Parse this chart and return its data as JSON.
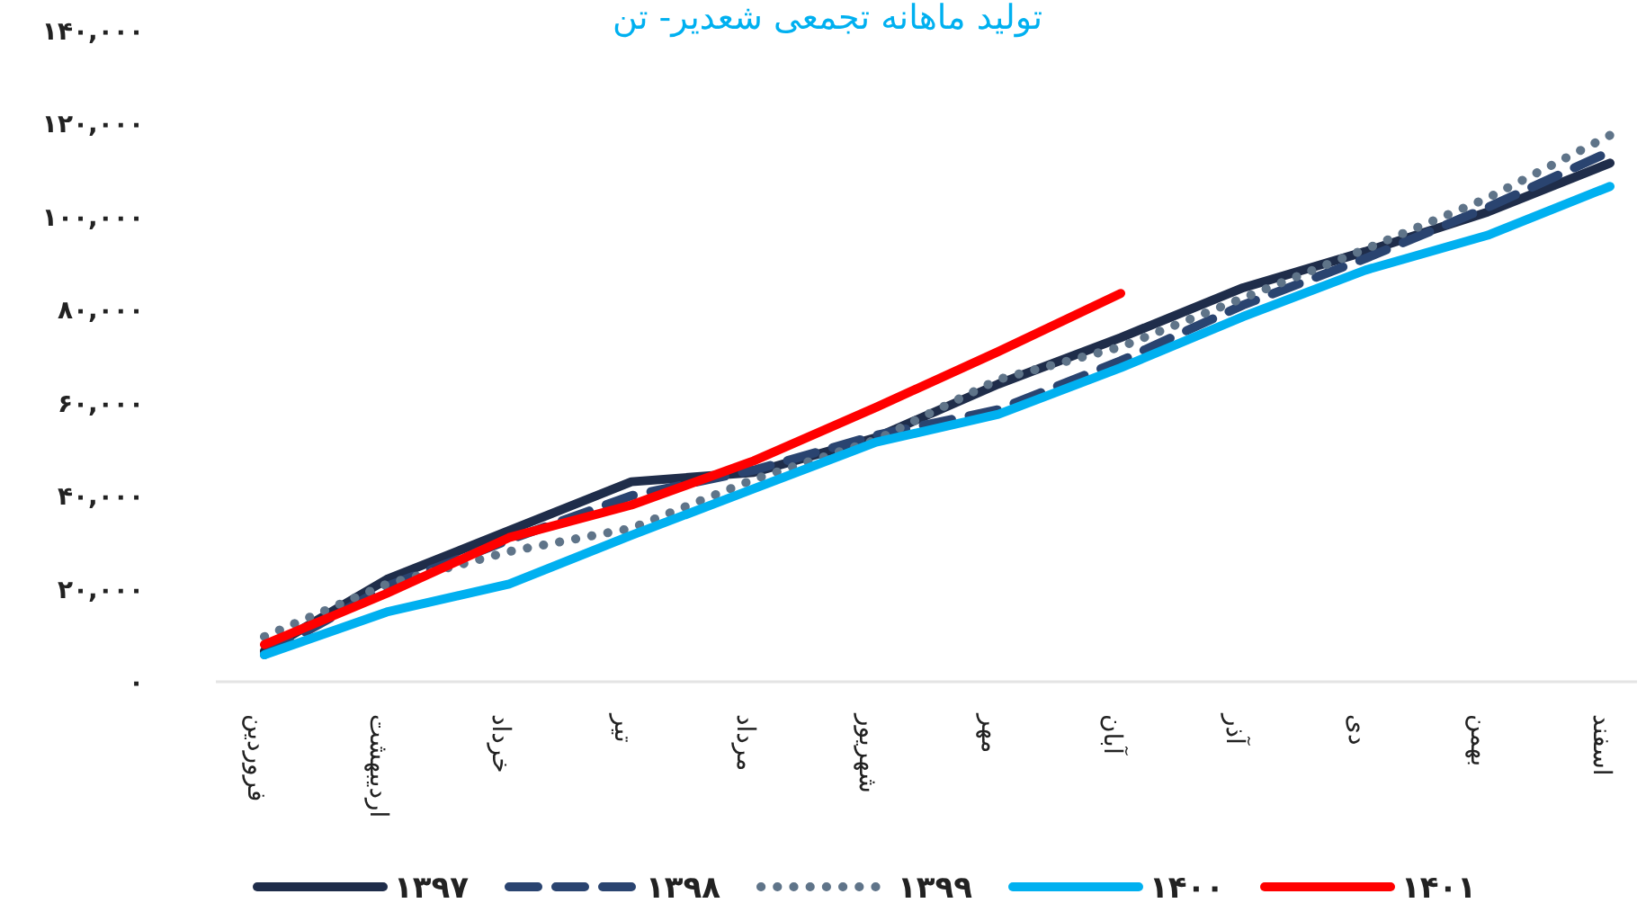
{
  "chart_data": {
    "type": "line",
    "title": "تولید ماهانه تجمعی شعدیر- تن",
    "categories": [
      "فروردین",
      "اردیبهشت",
      "خرداد",
      "تیر",
      "مرداد",
      "شهریور",
      "مهر",
      "آبان",
      "آذر",
      "دی",
      "بهمن",
      "اسفند"
    ],
    "ylim": [
      0,
      140000
    ],
    "yticks": [
      {
        "value": 0,
        "label": "۰"
      },
      {
        "value": 20000,
        "label": "۲۰,۰۰۰"
      },
      {
        "value": 40000,
        "label": "۴۰,۰۰۰"
      },
      {
        "value": 60000,
        "label": "۶۰,۰۰۰"
      },
      {
        "value": 80000,
        "label": "۸۰,۰۰۰"
      },
      {
        "value": 100000,
        "label": "۱۰۰,۰۰۰"
      },
      {
        "value": 120000,
        "label": "۱۲۰,۰۰۰"
      },
      {
        "value": 140000,
        "label": "۱۴۰,۰۰۰"
      }
    ],
    "grid": false,
    "legend": "bottom",
    "marker": "none",
    "series": [
      {
        "name": "۱۳۹۷",
        "color": "#1f2d4a",
        "line_style": "solid",
        "values": [
          6600,
          22000,
          32500,
          43000,
          45000,
          52500,
          64000,
          74000,
          84700,
          92500,
          101000,
          111500
        ]
      },
      {
        "name": "۱۳۹۸",
        "color": "#2a4470",
        "line_style": "dashed",
        "values": [
          5800,
          20500,
          30500,
          40000,
          45500,
          53000,
          58500,
          69000,
          81000,
          91000,
          102000,
          114000
        ]
      },
      {
        "name": "۱۳۹۹",
        "color": "#5f7489",
        "line_style": "dotted",
        "values": [
          9700,
          21000,
          28000,
          33000,
          43500,
          52000,
          65000,
          72000,
          82500,
          93000,
          104000,
          117500
        ]
      },
      {
        "name": "۱۴۰۰",
        "color": "#00b0f0",
        "line_style": "solid",
        "values": [
          5800,
          15000,
          21000,
          31500,
          41500,
          51500,
          57500,
          67500,
          78500,
          88500,
          96000,
          106500
        ]
      },
      {
        "name": "۱۴۰۱",
        "color": "#ff0000",
        "line_style": "solid",
        "values": [
          8000,
          19000,
          31000,
          38000,
          47500,
          59000,
          71000,
          83500,
          null,
          null,
          null,
          null
        ]
      }
    ]
  }
}
